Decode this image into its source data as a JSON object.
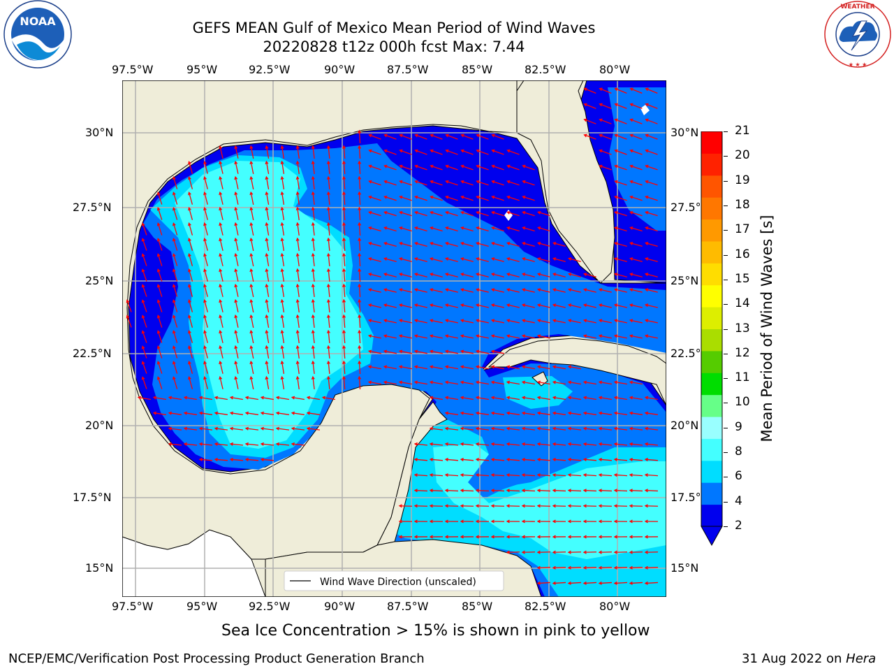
{
  "title": {
    "line1": "GEFS MEAN Gulf of Mexico Mean Period of Wind Waves",
    "line2": "20220828 t12z 000h fcst   Max: 7.44"
  },
  "logos": {
    "left": "NOAA",
    "left_ring_text": "NATIONAL OCEANIC AND ATMOSPHERIC ADMINISTRATION · U.S. DEPARTMENT OF COMMERCE",
    "right_ring_text": "NATIONAL WEATHER SERVICE"
  },
  "map": {
    "lon_labels": [
      "97.5°W",
      "95°W",
      "92.5°W",
      "90°W",
      "87.5°W",
      "85°W",
      "82.5°W",
      "80°W"
    ],
    "lat_labels_left": [
      "30°N",
      "27.5°N",
      "25°N",
      "22.5°N",
      "20°N",
      "17.5°N",
      "15°N"
    ],
    "lat_labels_right": [
      "30°N",
      "27.5°N",
      "25°N",
      "22.5°N",
      "20°N",
      "17.5°N",
      "15°N"
    ],
    "land_color": "#efedd9",
    "arrow_color": "#ff0000",
    "grid": true,
    "legend": {
      "label": "Wind Wave Direction (unscaled)",
      "placement": "bottom-center"
    }
  },
  "colorbar": {
    "label": "Mean Period of Wind Waves [s]",
    "ticks": [
      "21",
      "20",
      "19",
      "18",
      "17",
      "16",
      "15",
      "14",
      "13",
      "12",
      "11",
      "10",
      "9",
      "8",
      "6",
      "4",
      "2"
    ],
    "colors": [
      "#0000ee",
      "#0077ff",
      "#00ddff",
      "#44ffff",
      "#99ffff",
      "#66ff88",
      "#00dd00",
      "#55cc00",
      "#aadd00",
      "#ddee00",
      "#ffff00",
      "#ffdd00",
      "#ffbb00",
      "#ff9900",
      "#ff7700",
      "#ff5500",
      "#ff2200",
      "#ff0000"
    ]
  },
  "footer": {
    "note": "Sea Ice Concentration > 15% is shown in pink to yellow",
    "credit": "NCEP/EMC/Verification Post Processing Product Generation Branch",
    "date": "31 Aug 2022 on ",
    "host": "Hera"
  }
}
